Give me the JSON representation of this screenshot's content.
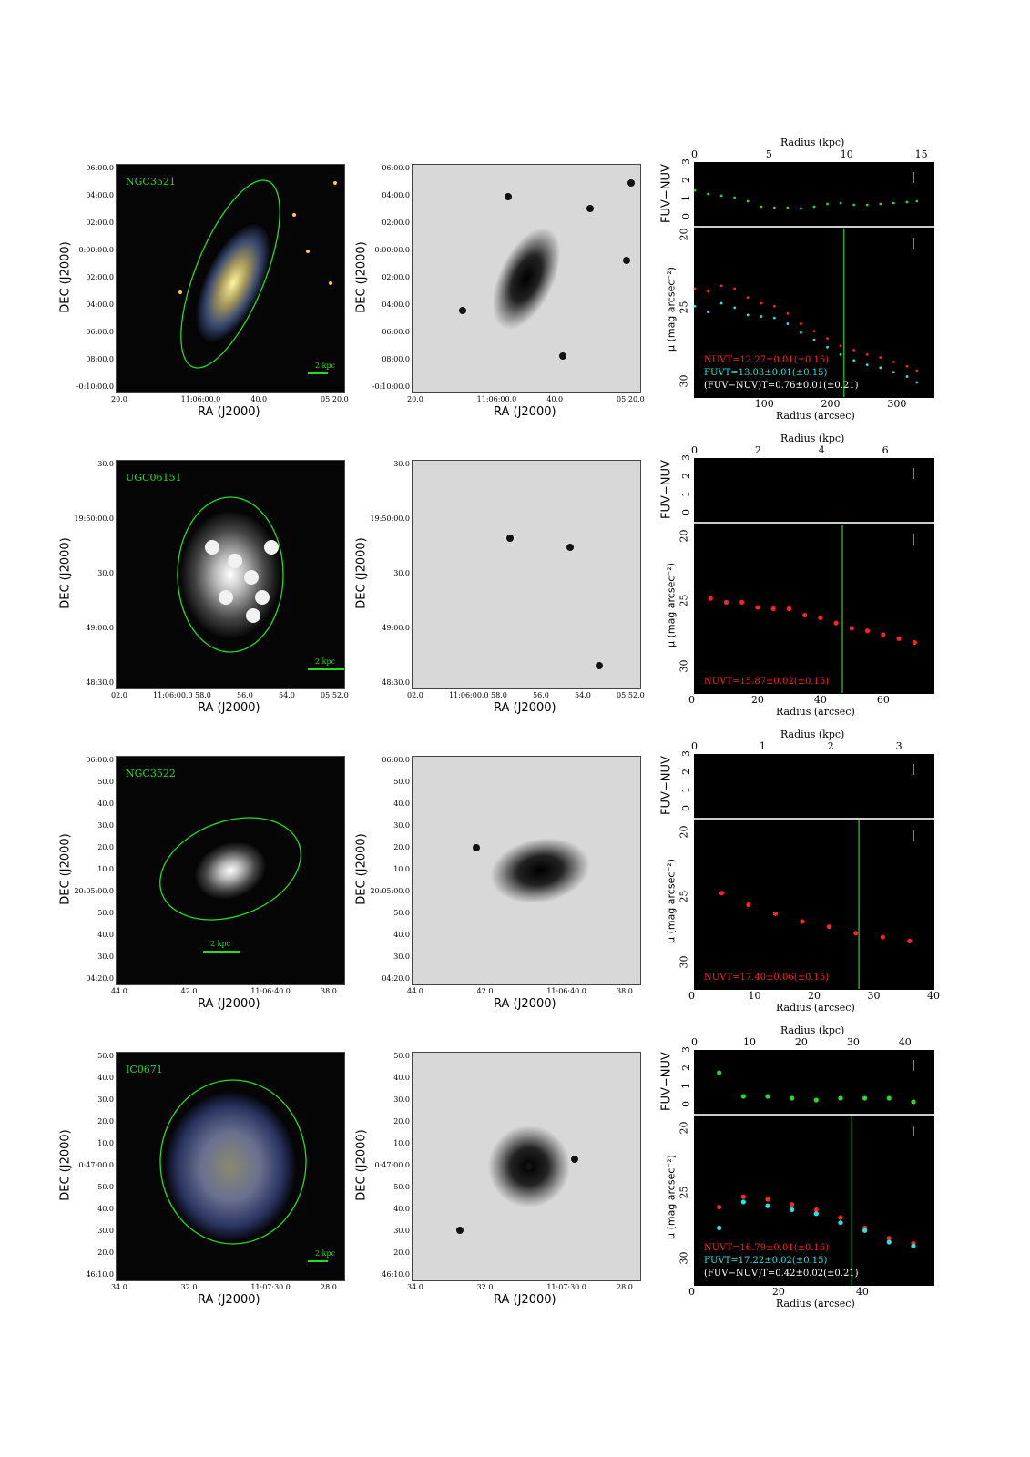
{
  "common": {
    "ra_label": "RA (J2000)",
    "dec_label": "DEC (J2000)",
    "color_axis_label": "FUV−NUV",
    "mu_axis_label": "μ (mag arcsec⁻²)",
    "radius_kpc_label": "Radius (kpc)",
    "radius_arcsec_label": "Radius (arcsec)",
    "colors": {
      "nuv": "#ff2222",
      "fuv": "#22e5e5",
      "color_pts": "#22dd22",
      "ellipse": "#22dd22",
      "white": "#ffffff"
    }
  },
  "galaxies": [
    {
      "name": "NGC3521",
      "scale_bar": "2 kpc",
      "ra_ticks": [
        "20.0",
        "11:06:00.0",
        "40.0",
        "05:20.0"
      ],
      "dec_ticks": [
        "06:00.0",
        "04:00.0",
        "02:00.0",
        "0:00:00.0",
        "02:00.0",
        "04:00.0",
        "06:00.0",
        "08:00.0",
        "-0:10:00.0"
      ],
      "kpc_ticks": [
        "0",
        "5",
        "10",
        "15"
      ],
      "color_ticks": [
        "3",
        "2",
        "1",
        "0"
      ],
      "mu_ticks": [
        "20",
        "25",
        "30"
      ],
      "arcsec_ticks": [
        "100",
        "200",
        "300"
      ],
      "annotations": [
        {
          "text": "NUVT=12.27±0.01(±0.15)",
          "color": "#ff2222"
        },
        {
          "text": "FUVT=13.03±0.01(±0.15)",
          "color": "#22e5e5"
        },
        {
          "text": "(FUV−NUV)T=0.76±0.01(±0.21)",
          "color": "#ffffff"
        }
      ],
      "chart_data": {
        "type": "scatter",
        "xlabel": "Radius (arcsec)",
        "x_range": [
          0,
          360
        ],
        "top_xlabel": "Radius (kpc)",
        "top_x_range": [
          0,
          16
        ],
        "panels": [
          {
            "ylabel": "FUV−NUV",
            "y_range": [
              -0.5,
              3
            ],
            "series": [
              {
                "color": "#22dd22",
                "x": [
                  0,
                  20,
                  40,
                  60,
                  80,
                  100,
                  120,
                  140,
                  160,
                  180,
                  200,
                  220,
                  240,
                  260,
                  280,
                  300,
                  320,
                  335
                ],
                "y": [
                  1.5,
                  1.3,
                  1.2,
                  1.1,
                  0.9,
                  0.6,
                  0.55,
                  0.55,
                  0.5,
                  0.6,
                  0.75,
                  0.8,
                  0.7,
                  0.7,
                  0.75,
                  0.8,
                  0.85,
                  0.9
                ]
              }
            ]
          },
          {
            "ylabel": "μ (mag arcsec⁻²)",
            "y_range": [
              31,
              19.5
            ],
            "vline": 225,
            "series": [
              {
                "color": "#ff2222",
                "x": [
                  0,
                  20,
                  40,
                  60,
                  80,
                  100,
                  120,
                  140,
                  160,
                  180,
                  200,
                  220,
                  240,
                  260,
                  280,
                  300,
                  320,
                  335
                ],
                "y": [
                  23.6,
                  23.8,
                  23.4,
                  23.6,
                  24.2,
                  24.6,
                  24.8,
                  25.3,
                  26.0,
                  26.5,
                  27.0,
                  27.5,
                  27.8,
                  28.1,
                  28.3,
                  28.6,
                  28.9,
                  29.2
                ]
              },
              {
                "color": "#22e5e5",
                "x": [
                  0,
                  20,
                  40,
                  60,
                  80,
                  100,
                  120,
                  140,
                  160,
                  180,
                  200,
                  220,
                  240,
                  260,
                  280,
                  300,
                  320,
                  335
                ],
                "y": [
                  24.8,
                  25.2,
                  24.6,
                  24.9,
                  25.4,
                  25.5,
                  25.6,
                  26.0,
                  26.6,
                  27.1,
                  27.6,
                  28.1,
                  28.5,
                  28.8,
                  29.0,
                  29.3,
                  29.6,
                  30.0
                ]
              }
            ]
          }
        ]
      }
    },
    {
      "name": "UGC06151",
      "scale_bar": "2 kpc",
      "ra_ticks": [
        "02.0",
        "11:06:00.0",
        "58.0",
        "56.0",
        "54.0",
        "05:52.0"
      ],
      "dec_ticks": [
        "30.0",
        "19:50:00.0",
        "30.0",
        "49:00.0",
        "48:30.0"
      ],
      "kpc_ticks": [
        "0",
        "2",
        "4",
        "6"
      ],
      "color_ticks": [
        "3",
        "2",
        "1",
        "0"
      ],
      "mu_ticks": [
        "20",
        "25",
        "30"
      ],
      "arcsec_ticks": [
        "0",
        "20",
        "40",
        "60"
      ],
      "annotations": [
        {
          "text": "NUVT=15.87±0.02(±0.15)",
          "color": "#ff2222"
        }
      ],
      "chart_data": {
        "type": "scatter",
        "xlabel": "Radius (arcsec)",
        "x_range": [
          0,
          76
        ],
        "top_xlabel": "Radius (kpc)",
        "top_x_range": [
          0,
          7.5
        ],
        "panels": [
          {
            "ylabel": "FUV−NUV",
            "y_range": [
              -0.5,
              3
            ],
            "series": []
          },
          {
            "ylabel": "μ (mag arcsec⁻²)",
            "y_range": [
              32,
              19
            ],
            "vline": 47,
            "series": [
              {
                "color": "#ff2222",
                "x": [
                  5,
                  10,
                  15,
                  20,
                  25,
                  30,
                  35,
                  40,
                  45,
                  50,
                  55,
                  60,
                  65,
                  70
                ],
                "y": [
                  24.7,
                  25.0,
                  25.0,
                  25.4,
                  25.5,
                  25.5,
                  26.0,
                  26.2,
                  26.6,
                  27.0,
                  27.2,
                  27.5,
                  27.8,
                  28.1
                ]
              }
            ]
          }
        ]
      }
    },
    {
      "name": "NGC3522",
      "scale_bar": "2 kpc",
      "ra_ticks": [
        "44.0",
        "42.0",
        "11:06:40.0",
        "38.0"
      ],
      "dec_ticks": [
        "06:00.0",
        "50.0",
        "40.0",
        "30.0",
        "20.0",
        "10.0",
        "20:05:00.0",
        "50.0",
        "40.0",
        "30.0",
        "04:20.0"
      ],
      "kpc_ticks": [
        "0",
        "1",
        "2",
        "3"
      ],
      "color_ticks": [
        "3",
        "2",
        "1",
        "0"
      ],
      "mu_ticks": [
        "20",
        "25",
        "30"
      ],
      "arcsec_ticks": [
        "0",
        "10",
        "20",
        "30",
        "40"
      ],
      "annotations": [
        {
          "text": "NUVT=17.40±0.06(±0.15)",
          "color": "#ff2222"
        }
      ],
      "chart_data": {
        "type": "scatter",
        "xlabel": "Radius (arcsec)",
        "x_range": [
          0,
          40
        ],
        "top_xlabel": "Radius (kpc)",
        "top_x_range": [
          0,
          3.5
        ],
        "panels": [
          {
            "ylabel": "FUV−NUV",
            "y_range": [
              -0.5,
              3
            ],
            "series": []
          },
          {
            "ylabel": "μ (mag arcsec⁻²)",
            "y_range": [
              32,
              19
            ],
            "vline": 27.5,
            "series": [
              {
                "color": "#ff2222",
                "x": [
                  4.5,
                  9,
                  13.5,
                  18,
                  22.5,
                  27,
                  31.5,
                  36
                ],
                "y": [
                  24.6,
                  25.5,
                  26.2,
                  26.8,
                  27.2,
                  27.7,
                  28.0,
                  28.3
                ]
              }
            ]
          }
        ]
      }
    },
    {
      "name": "IC0671",
      "scale_bar": "2 kpc",
      "ra_ticks": [
        "34.0",
        "32.0",
        "11:07:30.0",
        "28.0"
      ],
      "dec_ticks": [
        "50.0",
        "40.0",
        "30.0",
        "20.0",
        "10.0",
        "0:47:00.0",
        "50.0",
        "40.0",
        "30.0",
        "20.0",
        "46:10.0"
      ],
      "kpc_ticks": [
        "0",
        "10",
        "20",
        "30",
        "40"
      ],
      "color_ticks": [
        "3",
        "2",
        "1",
        "0"
      ],
      "mu_ticks": [
        "20",
        "25",
        "30"
      ],
      "arcsec_ticks": [
        "0",
        "20",
        "40"
      ],
      "annotations": [
        {
          "text": "NUVT=16.79±0.01(±0.15)",
          "color": "#ff2222"
        },
        {
          "text": "FUVT=17.22±0.02(±0.15)",
          "color": "#22e5e5"
        },
        {
          "text": "(FUV−NUV)T=0.42±0.02(±0.21)",
          "color": "#ffffff"
        }
      ],
      "chart_data": {
        "type": "scatter",
        "xlabel": "Radius (arcsec)",
        "x_range": [
          0,
          57
        ],
        "top_xlabel": "Radius (kpc)",
        "top_x_range": [
          0,
          46
        ],
        "panels": [
          {
            "ylabel": "FUV−NUV",
            "y_range": [
              -0.5,
              3
            ],
            "series": [
              {
                "color": "#22dd22",
                "x": [
                  5.8,
                  11.6,
                  17.4,
                  23.2,
                  29,
                  34.8,
                  40.6,
                  46.4,
                  52.2
                ],
                "y": [
                  1.8,
                  0.5,
                  0.5,
                  0.4,
                  0.3,
                  0.4,
                  0.4,
                  0.4,
                  0.2
                ]
              }
            ]
          },
          {
            "ylabel": "μ (mag arcsec⁻²)",
            "y_range": [
              32,
              19
            ],
            "vline": 37.5,
            "series": [
              {
                "color": "#ff2222",
                "x": [
                  5.8,
                  11.6,
                  17.4,
                  23.2,
                  29,
                  34.8,
                  40.6,
                  46.4,
                  52.2
                ],
                "y": [
                  26.0,
                  25.2,
                  25.4,
                  25.8,
                  26.2,
                  26.8,
                  27.6,
                  28.4,
                  28.8
                ]
              },
              {
                "color": "#22e5e5",
                "x": [
                  5.8,
                  11.6,
                  17.4,
                  23.2,
                  29,
                  34.8,
                  40.6,
                  46.4,
                  52.2
                ],
                "y": [
                  27.6,
                  25.6,
                  25.9,
                  26.2,
                  26.5,
                  27.2,
                  27.8,
                  28.7,
                  29.0
                ]
              }
            ]
          }
        ]
      }
    }
  ]
}
